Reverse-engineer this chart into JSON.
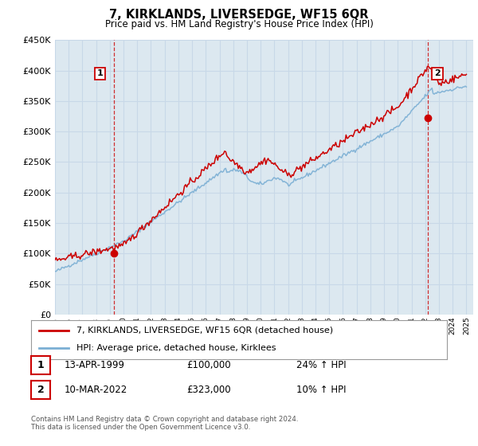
{
  "title": "7, KIRKLANDS, LIVERSEDGE, WF15 6QR",
  "subtitle": "Price paid vs. HM Land Registry's House Price Index (HPI)",
  "ylim": [
    0,
    450000
  ],
  "yticks": [
    0,
    50000,
    100000,
    150000,
    200000,
    250000,
    300000,
    350000,
    400000,
    450000
  ],
  "legend_line1": "7, KIRKLANDS, LIVERSEDGE, WF15 6QR (detached house)",
  "legend_line2": "HPI: Average price, detached house, Kirklees",
  "transaction1_date": "13-APR-1999",
  "transaction1_price": "£100,000",
  "transaction1_hpi": "24% ↑ HPI",
  "transaction2_date": "10-MAR-2022",
  "transaction2_price": "£323,000",
  "transaction2_hpi": "10% ↑ HPI",
  "footer": "Contains HM Land Registry data © Crown copyright and database right 2024.\nThis data is licensed under the Open Government Licence v3.0.",
  "hpi_color": "#7bafd4",
  "price_color": "#cc0000",
  "vline_color": "#cc0000",
  "grid_color": "#c8d8e8",
  "bg_color": "#dce8f0",
  "plot_bg": "#dce8f0"
}
